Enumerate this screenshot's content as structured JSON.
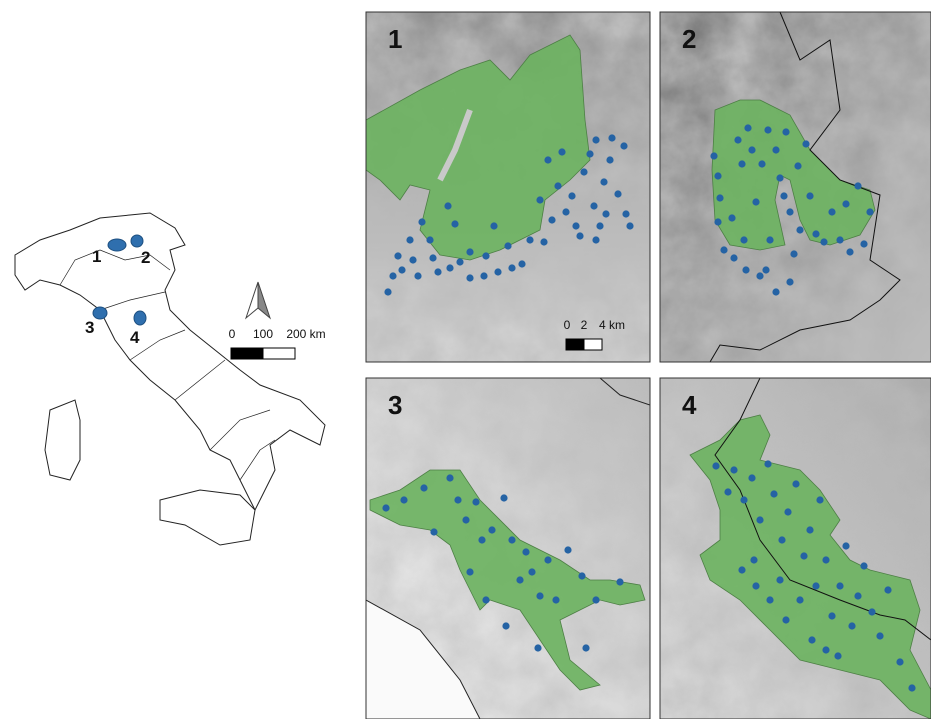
{
  "overview": {
    "site_labels": [
      "1",
      "2",
      "3",
      "4"
    ],
    "scale_bar": {
      "labels": [
        "0",
        "100",
        "200 km"
      ]
    }
  },
  "panels": [
    {
      "label": "1",
      "scale_bar": {
        "labels": [
          "0",
          "2",
          "4 km"
        ]
      }
    },
    {
      "label": "2"
    },
    {
      "label": "3"
    },
    {
      "label": "4"
    }
  ]
}
